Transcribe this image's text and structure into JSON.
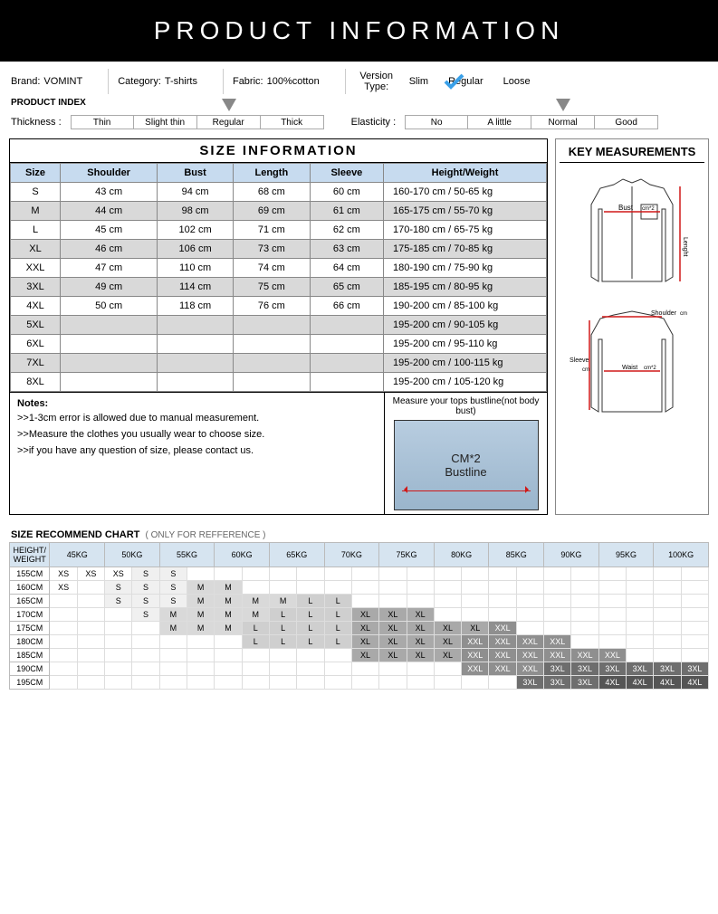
{
  "banner": "PRODUCT INFORMATION",
  "meta": {
    "brand_label": "Brand:",
    "brand": "VOMINT",
    "category_label": "Category:",
    "category": "T-shirts",
    "fabric_label": "Fabric:",
    "fabric": "100%cotton",
    "version_label": "Version Type:",
    "version_options": [
      "Slim",
      "Regular",
      "Loose"
    ],
    "version_selected": 1
  },
  "index_title": "PRODUCT INDEX",
  "thickness": {
    "label": "Thickness :",
    "options": [
      "Thin",
      "Slight thin",
      "Regular",
      "Thick"
    ],
    "selected": 2
  },
  "elasticity": {
    "label": "Elasticity :",
    "options": [
      "No",
      "A little",
      "Normal",
      "Good"
    ],
    "selected": 2
  },
  "size_info": {
    "title": "SIZE  INFORMATION",
    "headers": [
      "Size",
      "Shoulder",
      "Bust",
      "Length",
      "Sleeve",
      "Height/Weight"
    ],
    "rows": [
      {
        "size": "S",
        "shoulder": "43 cm",
        "bust": "94 cm",
        "length": "68 cm",
        "sleeve": "60 cm",
        "hw": "160-170 cm /    50-65  kg"
      },
      {
        "size": "M",
        "shoulder": "44 cm",
        "bust": "98 cm",
        "length": "69 cm",
        "sleeve": "61 cm",
        "hw": "165-175  cm /   55-70  kg"
      },
      {
        "size": "L",
        "shoulder": "45 cm",
        "bust": "102 cm",
        "length": "71 cm",
        "sleeve": "62 cm",
        "hw": "170-180  cm /   65-75  kg"
      },
      {
        "size": "XL",
        "shoulder": "46 cm",
        "bust": "106 cm",
        "length": "73 cm",
        "sleeve": "63 cm",
        "hw": "175-185  cm /   70-85  kg"
      },
      {
        "size": "XXL",
        "shoulder": "47 cm",
        "bust": "110 cm",
        "length": "74 cm",
        "sleeve": "64 cm",
        "hw": "180-190  cm /   75-90  kg"
      },
      {
        "size": "3XL",
        "shoulder": "49 cm",
        "bust": "114 cm",
        "length": "75 cm",
        "sleeve": "65 cm",
        "hw": "185-195  cm /   80-95  kg"
      },
      {
        "size": "4XL",
        "shoulder": "50 cm",
        "bust": "118 cm",
        "length": "76 cm",
        "sleeve": "66 cm",
        "hw": "190-200  cm /  85-100  kg"
      },
      {
        "size": "5XL",
        "shoulder": "",
        "bust": "",
        "length": "",
        "sleeve": "",
        "hw": "195-200  cm /  90-105  kg"
      },
      {
        "size": "6XL",
        "shoulder": "",
        "bust": "",
        "length": "",
        "sleeve": "",
        "hw": "195-200  cm /  95-110  kg"
      },
      {
        "size": "7XL",
        "shoulder": "",
        "bust": "",
        "length": "",
        "sleeve": "",
        "hw": "195-200  cm / 100-115  kg"
      },
      {
        "size": "8XL",
        "shoulder": "",
        "bust": "",
        "length": "",
        "sleeve": "",
        "hw": "195-200  cm / 105-120  kg"
      }
    ]
  },
  "notes": {
    "title": "Notes:",
    "n1": ">>1-3cm error is allowed due to manual measurement.",
    "n2": ">>Measure the clothes you usually wear to choose size.",
    "n3": ">>if you have any question of size, please contact us."
  },
  "measure": {
    "caption": "Measure your tops bustline(not body bust)",
    "line1": "CM*2",
    "line2": "Bustline"
  },
  "key": {
    "title": "KEY MEASUREMENTS",
    "bust_label": "Bust",
    "length_label": "Lenght",
    "shoulder_label": "Shoulder",
    "sleeve_label": "Sleeve",
    "waist_label": "Waist",
    "cm2": "cm*2",
    "cm": "cm",
    "line_color": "#d01818"
  },
  "rec": {
    "title": "SIZE RECOMMEND CHART",
    "sub": "( ONLY FOR REFFERENCE )",
    "corner": "HEIGHT/\nWEIGHT",
    "weights": [
      "45KG",
      "50KG",
      "55KG",
      "60KG",
      "65KG",
      "70KG",
      "75KG",
      "80KG",
      "85KG",
      "90KG",
      "95KG",
      "100KG"
    ],
    "heights": [
      "155CM",
      "160CM",
      "165CM",
      "170CM",
      "175CM",
      "180CM",
      "185CM",
      "190CM",
      "195CM"
    ],
    "grid": [
      [
        "XS",
        "XS",
        "XS",
        "S",
        "S",
        "",
        "",
        "",
        "",
        "",
        "",
        "",
        "",
        "",
        "",
        "",
        "",
        "",
        "",
        "",
        "",
        "",
        "",
        ""
      ],
      [
        "XS",
        "",
        "S",
        "S",
        "S",
        "M",
        "M",
        "",
        "",
        "",
        "",
        "",
        "",
        "",
        "",
        "",
        "",
        "",
        "",
        "",
        "",
        "",
        "",
        ""
      ],
      [
        "",
        "",
        "S",
        "S",
        "S",
        "M",
        "M",
        "M",
        "M",
        "L",
        "L",
        "",
        "",
        "",
        "",
        "",
        "",
        "",
        "",
        "",
        "",
        "",
        "",
        ""
      ],
      [
        "",
        "",
        "",
        "S",
        "M",
        "M",
        "M",
        "M",
        "L",
        "L",
        "L",
        "XL",
        "XL",
        "XL",
        "",
        "",
        "",
        "",
        "",
        "",
        "",
        "",
        "",
        ""
      ],
      [
        "",
        "",
        "",
        "",
        "M",
        "M",
        "M",
        "L",
        "L",
        "L",
        "L",
        "XL",
        "XL",
        "XL",
        "XL",
        "XL",
        "XXL",
        "",
        "",
        "",
        "",
        "",
        "",
        ""
      ],
      [
        "",
        "",
        "",
        "",
        "",
        "",
        "",
        "L",
        "L",
        "L",
        "L",
        "XL",
        "XL",
        "XL",
        "XL",
        "XXL",
        "XXL",
        "XXL",
        "XXL",
        "",
        "",
        "",
        "",
        ""
      ],
      [
        "",
        "",
        "",
        "",
        "",
        "",
        "",
        "",
        "",
        "",
        "",
        "XL",
        "XL",
        "XL",
        "XL",
        "XXL",
        "XXL",
        "XXL",
        "XXL",
        "XXL",
        "XXL",
        "",
        "",
        ""
      ],
      [
        "",
        "",
        "",
        "",
        "",
        "",
        "",
        "",
        "",
        "",
        "",
        "",
        "",
        "",
        "",
        "XXL",
        "XXL",
        "XXL",
        "3XL",
        "3XL",
        "3XL",
        "3XL",
        "3XL",
        "3XL"
      ],
      [
        "",
        "",
        "",
        "",
        "",
        "",
        "",
        "",
        "",
        "",
        "",
        "",
        "",
        "",
        "",
        "",
        "",
        "3XL",
        "3XL",
        "3XL",
        "4XL",
        "4XL",
        "4XL",
        "4XL"
      ]
    ],
    "fill_map": {
      "XS": "f-xs",
      "S": "f-s",
      "M": "f-m",
      "L": "f-l",
      "XL": "f-xl",
      "XXL": "f-xxl",
      "3XL": "f-3xl",
      "4XL": "f-4xl"
    }
  }
}
